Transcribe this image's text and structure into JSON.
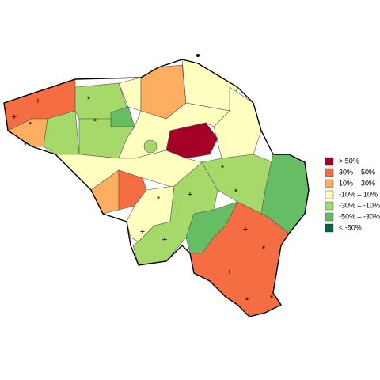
{
  "legend": {
    "items": [
      {
        "label": "> 50%",
        "color": "#a50026"
      },
      {
        "label": "30%  –  50%",
        "color": "#f46d43"
      },
      {
        "label": "10%  –  30%",
        "color": "#fdae61"
      },
      {
        "label": "-10%  –  10%",
        "color": "#ffffbf"
      },
      {
        "label": "-30%  –  -10%",
        "color": "#a6d96a"
      },
      {
        "label": "-50%  –  -30%",
        "color": "#66bd63"
      },
      {
        "label": "< -50%",
        "color": "#006837"
      }
    ]
  },
  "map": {
    "markers": [
      "+",
      "*"
    ]
  }
}
